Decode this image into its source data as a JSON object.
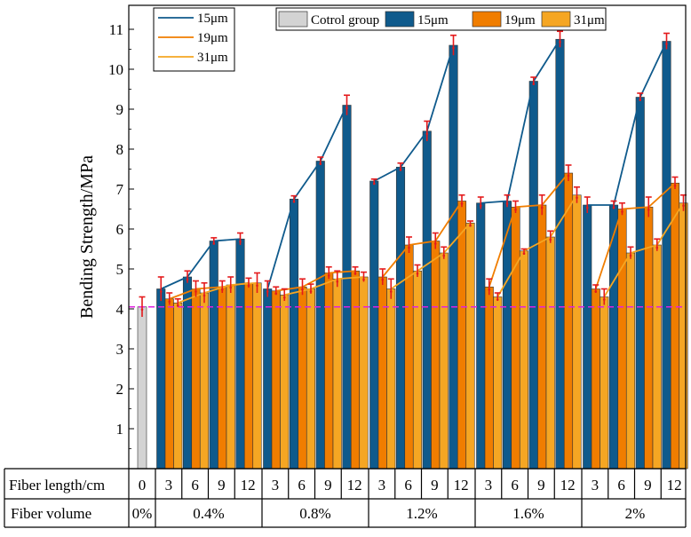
{
  "chart_data": {
    "type": "bar",
    "ylabel": "Bending Strength/MPa",
    "ylim": [
      0,
      11.6
    ],
    "yticks": [
      1,
      2,
      3,
      4,
      5,
      6,
      7,
      8,
      9,
      10,
      11
    ],
    "reference_line": 4.05,
    "control": {
      "name": "Cotrol group",
      "fiber_length": "0",
      "fiber_volume": "0%",
      "value": 4.05,
      "error": 0.25,
      "color": "#d3d3d3"
    },
    "fiber_volumes": [
      "0.4%",
      "0.8%",
      "1.2%",
      "1.6%",
      "2%"
    ],
    "fiber_lengths": [
      "3",
      "6",
      "9",
      "12"
    ],
    "series": [
      {
        "name": "15μm",
        "color": "#0f5a8c",
        "values": [
          [
            4.5,
            4.8,
            5.7,
            5.75
          ],
          [
            4.5,
            6.75,
            7.7,
            9.1
          ],
          [
            7.2,
            7.55,
            8.45,
            10.6
          ],
          [
            6.65,
            6.7,
            9.7,
            10.75
          ],
          [
            6.6,
            6.6,
            9.3,
            10.7
          ]
        ],
        "errors": [
          [
            0.3,
            0.15,
            0.08,
            0.15
          ],
          [
            0.2,
            0.08,
            0.1,
            0.25
          ],
          [
            0.05,
            0.1,
            0.25,
            0.25
          ],
          [
            0.15,
            0.15,
            0.1,
            0.2
          ],
          [
            0.2,
            0.1,
            0.1,
            0.2
          ]
        ]
      },
      {
        "name": "19μm",
        "color": "#f07d00",
        "values": [
          [
            4.25,
            4.5,
            4.55,
            4.65
          ],
          [
            4.45,
            4.55,
            4.9,
            4.95
          ],
          [
            4.8,
            5.6,
            5.7,
            6.7
          ],
          [
            4.55,
            6.55,
            6.6,
            7.4
          ],
          [
            4.5,
            6.5,
            6.55,
            7.15
          ]
        ],
        "errors": [
          [
            0.15,
            0.2,
            0.15,
            0.12
          ],
          [
            0.1,
            0.2,
            0.15,
            0.1
          ],
          [
            0.2,
            0.2,
            0.2,
            0.15
          ],
          [
            0.2,
            0.15,
            0.25,
            0.2
          ],
          [
            0.1,
            0.15,
            0.25,
            0.15
          ]
        ]
      },
      {
        "name": "31μm",
        "color": "#f5a623",
        "values": [
          [
            4.15,
            4.4,
            4.6,
            4.65
          ],
          [
            4.35,
            4.5,
            4.75,
            4.8
          ],
          [
            4.5,
            4.95,
            5.4,
            6.15
          ],
          [
            4.3,
            5.45,
            5.8,
            6.85
          ],
          [
            4.3,
            5.4,
            5.6,
            6.65
          ]
        ],
        "errors": [
          [
            0.1,
            0.25,
            0.2,
            0.25
          ],
          [
            0.15,
            0.12,
            0.2,
            0.12
          ],
          [
            0.25,
            0.15,
            0.15,
            0.05
          ],
          [
            0.1,
            0.05,
            0.15,
            0.2
          ],
          [
            0.2,
            0.15,
            0.15,
            0.2
          ]
        ]
      }
    ],
    "legend_lines": [
      "15μm",
      "19μm",
      "31μm"
    ],
    "legend_bars": [
      "Cotrol group",
      "15μm",
      "19μm",
      "31μm"
    ],
    "table": {
      "row1_label": "Fiber length/cm",
      "row2_label": "Fiber volume"
    },
    "error_color": "#e41a1c",
    "reference_color": "#e020e0"
  }
}
